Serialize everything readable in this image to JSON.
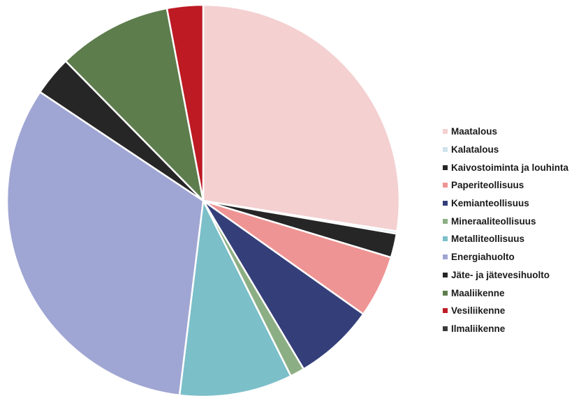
{
  "chart_data": {
    "type": "pie",
    "title": "",
    "legend_position": "right",
    "start_angle": "12 o'clock",
    "direction": "clockwise",
    "slices": [
      {
        "label": "Maatalous",
        "value": 27.8,
        "color": "#f4d0d1"
      },
      {
        "label": "Kalatalous",
        "value": 0.2,
        "color": "#cfe3ee"
      },
      {
        "label": "Kaivostoiminta ja louhinta",
        "value": 2.0,
        "color": "#262626"
      },
      {
        "label": "Paperiteollisuus",
        "value": 5.2,
        "color": "#ef9494"
      },
      {
        "label": "Kemianteollisuus",
        "value": 6.7,
        "color": "#343f7a"
      },
      {
        "label": "Mineraaliteollisuus",
        "value": 1.2,
        "color": "#8cae84"
      },
      {
        "label": "Metalliteollisuus",
        "value": 9.4,
        "color": "#7bbfc9"
      },
      {
        "label": "Energiahuolto",
        "value": 32.8,
        "color": "#a0a6d3"
      },
      {
        "label": "Jäte- ja jätevesihuolto",
        "value": 3.3,
        "color": "#262626"
      },
      {
        "label": "Maaliikenne",
        "value": 9.5,
        "color": "#5e7d4d"
      },
      {
        "label": "Vesiliikenne",
        "value": 3.0,
        "color": "#bd1a24"
      },
      {
        "label": "Ilmaliikenne",
        "value": 0.0,
        "color": "#3a3a3a"
      }
    ]
  }
}
